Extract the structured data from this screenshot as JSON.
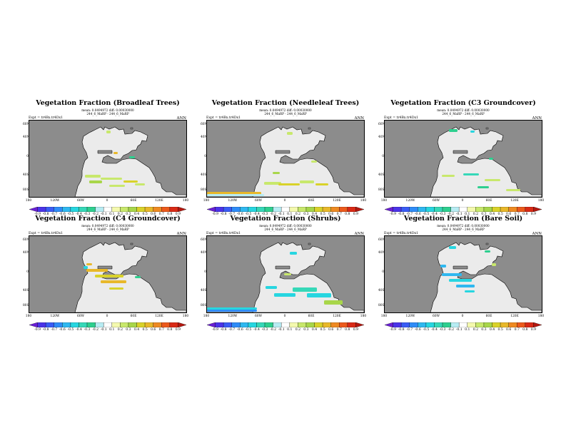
{
  "colorbar": {
    "labels": [
      "-0.9",
      "-0.8",
      "-0.7",
      "-0.6",
      "-0.5",
      "-0.4",
      "-0.3",
      "-0.2",
      "-0.1",
      "0.1",
      "0.2",
      "0.3",
      "0.4",
      "0.5",
      "0.6",
      "0.7",
      "0.8",
      "0.9"
    ],
    "colors": [
      "#6a1fd6",
      "#4b34e8",
      "#3a5cf5",
      "#2f8cf7",
      "#2fb8f0",
      "#27d6e0",
      "#36d8b8",
      "#2ecf8f",
      "#b7ecf3",
      "#ffffff",
      "#f4f9ae",
      "#c8e86c",
      "#a8d64a",
      "#d9d22a",
      "#e8b82a",
      "#ee8a22",
      "#ec5a1c",
      "#d92a16",
      "#b5170f"
    ]
  },
  "map": {
    "y_labels": [
      "60N",
      "40N",
      "0",
      "40S",
      "80S"
    ],
    "x_labels": [
      "180",
      "120W",
      "60W",
      "0",
      "60E",
      "120E",
      "180"
    ],
    "ocean_color": "#8c8c8c",
    "land_color": "#ebebeb"
  },
  "panels": [
    {
      "title": "Vegetation Fraction (Broadleaf Trees)",
      "line1": "mean: 0.0494972 diff: 0.00030000",
      "line2": "244_6_MaRP - 244_6_MaRP",
      "expt": "Expt = tr4Bx.tr4Dx1",
      "season": "ANN"
    },
    {
      "title": "Vegetation Fraction (Needleleaf Trees)",
      "line1": "mean: 0.0494972 diff: 0.00030000",
      "line2": "244_6_MaRP - 244_6_MaRP",
      "expt": "Expt = tr4Bx.tr4Dx1",
      "season": "ANN"
    },
    {
      "title": "Vegetation Fraction (C3 Groundcover)",
      "line1": "mean: 0.0494972 diff: 0.00030000",
      "line2": "244_6_MaRP - 244_6_MaRP",
      "expt": "Expt = tr4Bx.tr4Dx1",
      "season": "ANN"
    },
    {
      "title": "Vegetation Fraction (C4 Groundcover)",
      "line1": "mean: 0.0494972 diff: 0.00030000",
      "line2": "244_6_MaRP - 244_6_MaRP",
      "expt": "Expt = tr4Bx.tr4Dx1",
      "season": "ANN"
    },
    {
      "title": "Vegetation Fraction (Shrubs)",
      "line1": "mean: 0.0494972 diff: 0.00030000",
      "line2": "244_6_MaRP - 244_6_MaRP",
      "expt": "Expt = tr4Bx.tr4Dx1",
      "season": "ANN"
    },
    {
      "title": "Vegetation Fraction (Bare Soil)",
      "line1": "mean: 0.0494972 diff: 0.00030000",
      "line2": "244_6_MaRP - 244_6_MaRP",
      "expt": "Expt = tr4Bx.tr4Dx1",
      "season": "ANN"
    }
  ]
}
